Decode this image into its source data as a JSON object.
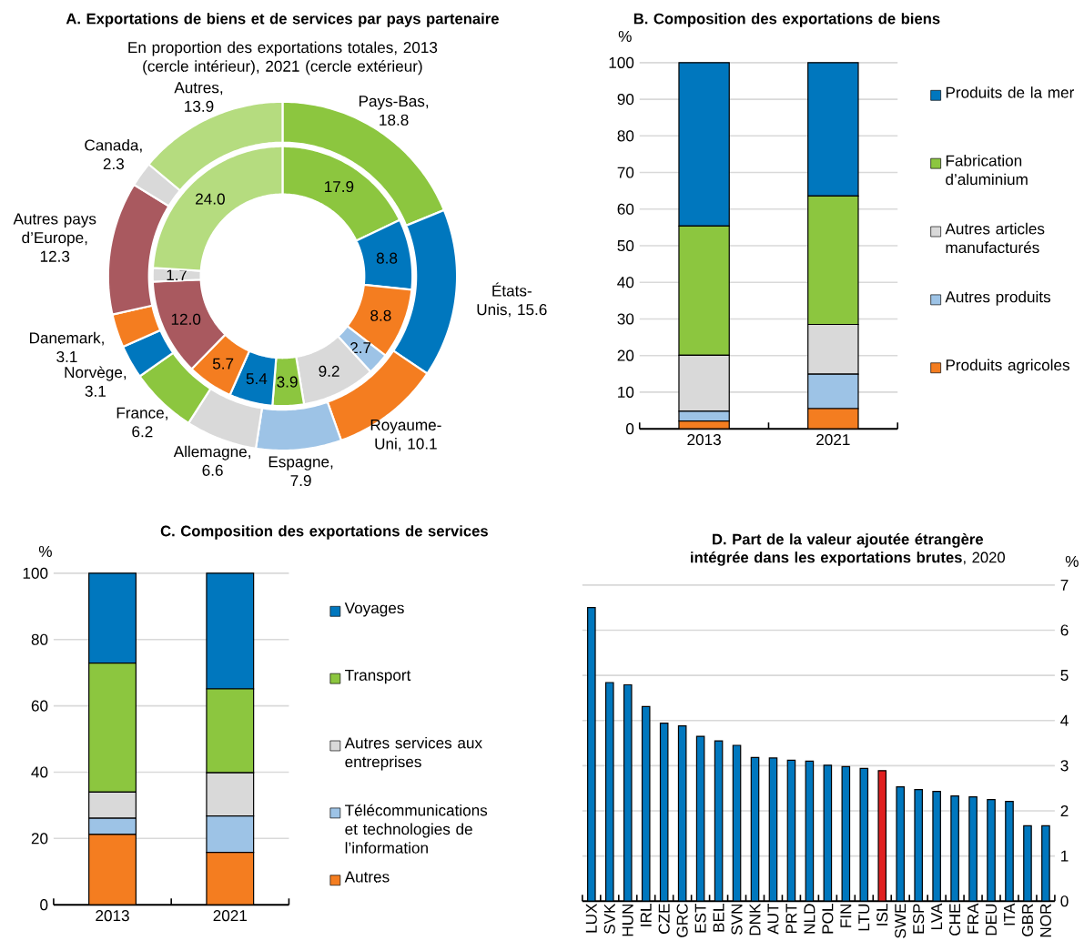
{
  "chart_data": [
    {
      "type": "donut",
      "title": "A. Exportations de biens et de services par pays partenaire",
      "subtitle": "En proportion des exportations totales, 2013 (cercle intérieur), 2021 (cercle extérieur)",
      "categories": [
        "Pays-Bas",
        "États-Unis",
        "Royaume-Uni",
        "Espagne",
        "Allemagne",
        "France",
        "Norvège",
        "Danemark",
        "Autres pays d’Europe",
        "Canada",
        "Autres"
      ],
      "colors": [
        "#8cc63f",
        "#0077be",
        "#f47d20",
        "#9dc3e6",
        "#d9d9d9",
        "#8cc63f",
        "#0077be",
        "#f47d20",
        "#a9595f",
        "#d9d9d9",
        "#b5dc7f"
      ],
      "series": [
        {
          "values": [
            18.8,
            15.6,
            10.1,
            7.9,
            6.6,
            6.2,
            3.1,
            3.1,
            12.3,
            2.3,
            13.9
          ],
          "value_labels": [
            ", 18.8",
            ", 15.6",
            ", 10.1",
            ", 7.9",
            ", 6.6",
            ", 6.2",
            ", 3.1",
            ", 3.1",
            ", 12.3",
            ", 2.3",
            ", 13.9"
          ]
        },
        {
          "values": [
            17.9,
            8.8,
            8.8,
            2.7,
            9.2,
            3.9,
            5.4,
            5.7,
            12.0,
            1.7,
            24.0
          ],
          "value_labels": [
            "17.9",
            "8.8",
            "8.8",
            "2.7",
            "9.2",
            "3.9",
            "5.4",
            "5.7",
            "12.0",
            "1.7",
            "24.0"
          ]
        }
      ],
      "data_labels": true
    },
    {
      "type": "bar",
      "stacked": true,
      "title": "B. Composition des exportations de biens",
      "ylabel": "%",
      "categories": [
        "2013",
        "2021"
      ],
      "series": [
        {
          "name": "Produits agricoles",
          "color": "#f47d20",
          "values": [
            2.1,
            5.5
          ]
        },
        {
          "name": "Autres produits",
          "color": "#9dc3e6",
          "values": [
            2.7,
            9.4
          ]
        },
        {
          "name": "Autres articles manufacturés",
          "color": "#d9d9d9",
          "values": [
            15.3,
            13.6
          ]
        },
        {
          "name": "Fabrication d’aluminium",
          "color": "#8cc63f",
          "values": [
            35.3,
            35.1
          ]
        },
        {
          "name": "Produits de la mer",
          "color": "#0077be",
          "values": [
            44.6,
            36.4
          ]
        }
      ],
      "ylim": [
        0,
        100
      ],
      "yticks": [
        0,
        10,
        20,
        30,
        40,
        50,
        60,
        70,
        80,
        90,
        100
      ],
      "grid": "y",
      "legend": "right"
    },
    {
      "type": "bar",
      "stacked": true,
      "title": "C. Composition des exportations de services",
      "ylabel": "%",
      "categories": [
        "2013",
        "2021"
      ],
      "series": [
        {
          "name": "Autres",
          "color": "#f47d20",
          "values": [
            21.2,
            15.8
          ]
        },
        {
          "name": "Télécommunications et technologies de l’information",
          "color": "#9dc3e6",
          "values": [
            4.9,
            11.0
          ]
        },
        {
          "name": "Autres services aux entreprises",
          "color": "#d9d9d9",
          "values": [
            7.9,
            13.0
          ]
        },
        {
          "name": "Transport",
          "color": "#8cc63f",
          "values": [
            38.9,
            25.3
          ]
        },
        {
          "name": "Voyages",
          "color": "#0077be",
          "values": [
            27.1,
            34.9
          ]
        }
      ],
      "ylim": [
        0,
        100
      ],
      "yticks": [
        0,
        20,
        40,
        60,
        80,
        100
      ],
      "grid": "y",
      "legend": "right"
    },
    {
      "type": "bar",
      "title": "**D. Part de la valeur ajoutée étrangère intégrée dans les exportations brutes**, 2020",
      "ylabel": "%",
      "categories": [
        "LUX",
        "SVK",
        "HUN",
        "IRL",
        "CZE",
        "GRC",
        "EST",
        "BEL",
        "SVN",
        "DNK",
        "AUT",
        "PRT",
        "NLD",
        "POL",
        "FIN",
        "LTU",
        "ISL",
        "SWE",
        "ESP",
        "LVA",
        "CHE",
        "FRA",
        "DEU",
        "ITA",
        "GBR",
        "NOR"
      ],
      "values": [
        6.5,
        4.84,
        4.79,
        4.31,
        3.94,
        3.88,
        3.65,
        3.55,
        3.45,
        3.18,
        3.17,
        3.12,
        3.1,
        3.01,
        2.98,
        2.94,
        2.89,
        2.53,
        2.47,
        2.43,
        2.33,
        2.31,
        2.25,
        2.21,
        1.67,
        1.67
      ],
      "colors": [
        "#0077be",
        "#0077be",
        "#0077be",
        "#0077be",
        "#0077be",
        "#0077be",
        "#0077be",
        "#0077be",
        "#0077be",
        "#0077be",
        "#0077be",
        "#0077be",
        "#0077be",
        "#0077be",
        "#0077be",
        "#0077be",
        "#e02020",
        "#0077be",
        "#0077be",
        "#0077be",
        "#0077be",
        "#0077be",
        "#0077be",
        "#0077be",
        "#0077be",
        "#0077be"
      ],
      "ylim": [
        0,
        7
      ],
      "yticks": [
        0,
        1,
        2,
        3,
        4,
        5,
        6,
        7
      ],
      "grid": "y"
    }
  ]
}
